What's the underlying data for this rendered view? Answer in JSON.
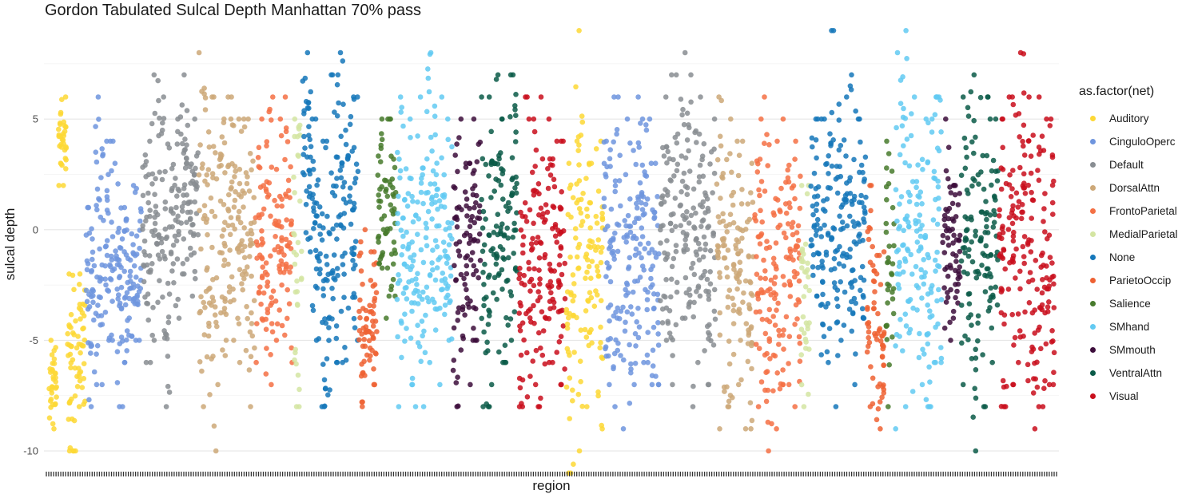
{
  "chart_data": {
    "type": "scatter",
    "title": "Gordon Tabulated Sulcal Depth Manhattan 70% pass",
    "xlabel": "region",
    "ylabel": "sulcal depth",
    "y_ticks": [
      -10,
      -5,
      0,
      5
    ],
    "ylim": [
      -10.9,
      9.3
    ],
    "grid": true,
    "legend": {
      "title": "as.factor(net)",
      "placement": "right",
      "entries": [
        {
          "name": "Auditory",
          "color": "#FDD835"
        },
        {
          "name": "CinguloOperc",
          "color": "#6F95DE"
        },
        {
          "name": "Default",
          "color": "#888D92"
        },
        {
          "name": "DorsalAttn",
          "color": "#CDA878"
        },
        {
          "name": "FrontoParietal",
          "color": "#F47044"
        },
        {
          "name": "MedialParietal",
          "color": "#D4E5A2"
        },
        {
          "name": "None",
          "color": "#1577BA"
        },
        {
          "name": "ParietoOccip",
          "color": "#EE6133"
        },
        {
          "name": "Salience",
          "color": "#477A2C"
        },
        {
          "name": "SMhand",
          "color": "#62CAF2"
        },
        {
          "name": "SMmouth",
          "color": "#3C0D3B"
        },
        {
          "name": "VentralAttn",
          "color": "#0A5A48"
        },
        {
          "name": "Visual",
          "color": "#C90E1C"
        }
      ]
    },
    "segments": [
      {
        "net": "Auditory",
        "regions": [
          [
            -9,
            -5
          ],
          [
            2,
            6
          ],
          [
            -10,
            -2
          ],
          [
            -8,
            -2
          ]
        ]
      },
      {
        "net": "CinguloOperc",
        "regions": [
          [
            -8,
            1
          ],
          [
            -7,
            6
          ],
          [
            -5,
            4
          ],
          [
            -8,
            3
          ],
          [
            -6,
            1
          ],
          [
            -5,
            2
          ]
        ]
      },
      {
        "net": "Default",
        "regions": [
          [
            -6,
            4
          ],
          [
            -5,
            7
          ],
          [
            -8,
            6
          ],
          [
            -4,
            5
          ],
          [
            -2,
            7
          ],
          [
            -3,
            5
          ]
        ]
      },
      {
        "net": "DorsalAttn",
        "regions": [
          [
            -8,
            8
          ],
          [
            -10,
            6
          ],
          [
            -7,
            5
          ],
          [
            -5,
            6
          ],
          [
            -6,
            5
          ],
          [
            -8,
            5
          ]
        ]
      },
      {
        "net": "FrontoParietal",
        "regions": [
          [
            -6,
            5
          ],
          [
            -7,
            6
          ],
          [
            -5,
            5
          ],
          [
            -6,
            6
          ]
        ]
      },
      {
        "net": "MedialParietal",
        "regions": [
          [
            -8,
            5
          ]
        ]
      },
      {
        "net": "None",
        "regions": [
          [
            -1,
            8
          ],
          [
            -5,
            5
          ],
          [
            -8,
            4
          ],
          [
            -6,
            7
          ],
          [
            -6,
            8
          ],
          [
            -5,
            6
          ]
        ]
      },
      {
        "net": "ParietoOccip",
        "regions": [
          [
            -8,
            0
          ],
          [
            -7,
            -1
          ]
        ]
      },
      {
        "net": "Salience",
        "regions": [
          [
            -4,
            5
          ],
          [
            -3,
            5
          ]
        ]
      },
      {
        "net": "SMhand",
        "regions": [
          [
            -8,
            6
          ],
          [
            -7,
            5
          ],
          [
            -8,
            6
          ],
          [
            -6,
            8
          ],
          [
            -7,
            6
          ],
          [
            -5,
            5
          ]
        ]
      },
      {
        "net": "SMmouth",
        "regions": [
          [
            -8,
            5
          ],
          [
            -7,
            3
          ],
          [
            -5,
            5
          ]
        ]
      },
      {
        "net": "VentralAttn",
        "regions": [
          [
            -8,
            6
          ],
          [
            -7,
            7
          ],
          [
            -6,
            5
          ],
          [
            -5,
            7
          ]
        ]
      },
      {
        "net": "Visual",
        "regions": [
          [
            -8,
            6
          ],
          [
            -7,
            5
          ],
          [
            -8,
            6
          ],
          [
            -6,
            5
          ],
          [
            -7,
            4
          ]
        ]
      },
      {
        "net": "Auditory",
        "regions": [
          [
            -11,
            3
          ],
          [
            -10,
            9
          ],
          [
            -8,
            3
          ],
          [
            -9,
            4
          ]
        ]
      },
      {
        "net": "CinguloOperc",
        "regions": [
          [
            -7,
            4
          ],
          [
            -8,
            6
          ],
          [
            -9,
            5
          ],
          [
            -7,
            6
          ],
          [
            -6,
            5
          ],
          [
            -7,
            3
          ]
        ]
      },
      {
        "net": "Default",
        "regions": [
          [
            -5,
            6
          ],
          [
            -7,
            7
          ],
          [
            -4,
            8
          ],
          [
            -8,
            7
          ],
          [
            -6,
            6
          ],
          [
            -7,
            5
          ]
        ]
      },
      {
        "net": "DorsalAttn",
        "regions": [
          [
            -9,
            6
          ],
          [
            -8,
            5
          ],
          [
            -7,
            4
          ],
          [
            -9,
            3
          ]
        ]
      },
      {
        "net": "FrontoParietal",
        "regions": [
          [
            -8,
            5
          ],
          [
            -10,
            6
          ],
          [
            -9,
            4
          ],
          [
            -7,
            5
          ],
          [
            -8,
            4
          ]
        ]
      },
      {
        "net": "MedialParietal",
        "regions": [
          [
            -8,
            2
          ]
        ]
      },
      {
        "net": "None",
        "regions": [
          [
            -3,
            5
          ],
          [
            -6,
            5
          ],
          [
            -8,
            9
          ],
          [
            -5,
            6
          ],
          [
            -7,
            7
          ],
          [
            -4,
            5
          ]
        ]
      },
      {
        "net": "ParietoOccip",
        "regions": [
          [
            -8,
            2
          ],
          [
            -9,
            -1
          ]
        ]
      },
      {
        "net": "Salience",
        "regions": [
          [
            -8,
            4
          ]
        ]
      },
      {
        "net": "SMhand",
        "regions": [
          [
            -9,
            8
          ],
          [
            -8,
            9
          ],
          [
            -7,
            6
          ],
          [
            -8,
            5
          ],
          [
            -6,
            6
          ]
        ]
      },
      {
        "net": "SMmouth",
        "regions": [
          [
            -5,
            5
          ],
          [
            -4,
            2
          ]
        ]
      },
      {
        "net": "VentralAttn",
        "regions": [
          [
            -7,
            6
          ],
          [
            -10,
            7
          ],
          [
            -8,
            6
          ],
          [
            -6,
            5
          ]
        ]
      },
      {
        "net": "Visual",
        "regions": [
          [
            -8,
            5
          ],
          [
            -7,
            6
          ],
          [
            -6,
            8
          ],
          [
            -9,
            6
          ],
          [
            -8,
            6
          ],
          [
            -7,
            5
          ]
        ]
      }
    ]
  }
}
